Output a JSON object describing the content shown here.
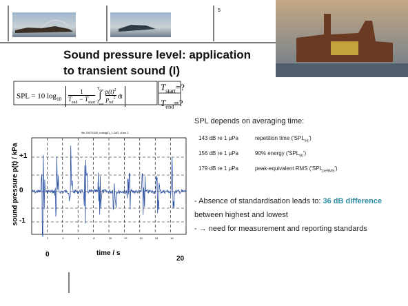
{
  "header": {
    "page_number": "5"
  },
  "title": {
    "line1": "Sound pressure level: application",
    "line2": "to transient sound (I)"
  },
  "formula": {
    "lhs": "SPL = 10 log",
    "log_base": "10",
    "num": "1",
    "den_a": "T",
    "den_a_sub": "end",
    "den_b": " − T",
    "den_b_sub": "start",
    "int_upper": "T",
    "int_upper_sub": "end",
    "int_lower": "T",
    "int_lower_sub": "start",
    "integrand_num": "p(t)",
    "integrand_num_sup": "2",
    "integrand_den": "p",
    "integrand_den_sub": "ref",
    "integrand_den_sup": "2",
    "dt": " dt"
  },
  "unknowns": {
    "start": "T",
    "start_sub": "start",
    "start_rest": "=?",
    "end": "T",
    "end_sub": "end",
    "end_rest": "=?"
  },
  "plot": {
    "title": "file 20070305_mdsig01_1.DAT, chan 2",
    "y_label": "sound pressure p(t)  /  kPa",
    "y_ticks": [
      "+1",
      "0",
      "-1"
    ],
    "x_start": "0",
    "x_label": "time / s",
    "x_end": "20",
    "x_small_ticks": [
      "2",
      "4",
      "6",
      "8",
      "10",
      "12",
      "14",
      "16",
      "18"
    ]
  },
  "notes": {
    "heading": "SPL depends on averaging time:",
    "rows": [
      {
        "level": "143 dB re 1 µPa",
        "pre": "repetition time ('SPL",
        "sub": "eq",
        "post": "')"
      },
      {
        "level": "156 dB re 1 µPa",
        "pre": "90% energy ('SPL",
        "sub": "90",
        "post": "')"
      },
      {
        "level": "179 dB re 1 µPa",
        "pre": "peak-equivalent RMS ('SPL",
        "sub": "peRMS",
        "post": "')"
      }
    ]
  },
  "bullets": {
    "b1_pre": "- Absence of standardisation leads to: ",
    "b1_bold": "36 dB difference",
    "b1_post": " between highest and lowest",
    "b2": "- → need for measurement and reporting standards"
  }
}
